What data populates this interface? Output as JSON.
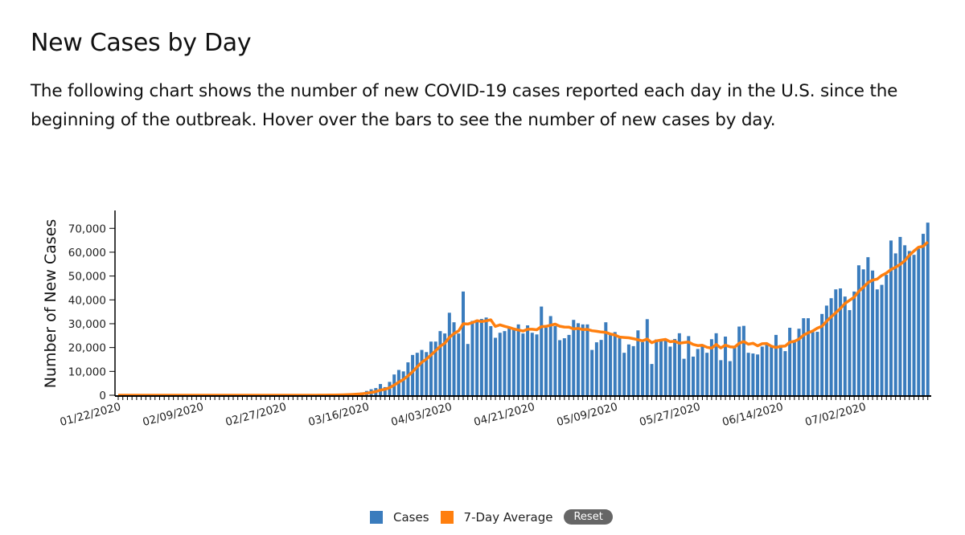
{
  "header": {
    "title": "New Cases by Day",
    "description": "The following chart shows the number of new COVID-19 cases reported each day in the U.S. since the beginning of the outbreak. Hover over the bars to see the number of new cases by day."
  },
  "legend": {
    "cases_label": "Cases",
    "avg_label": "7-Day Average",
    "reset_label": "Reset"
  },
  "colors": {
    "cases": "#3a7cbd",
    "average": "#ff7f0e",
    "reset_bg": "#666666"
  },
  "chart_data": {
    "type": "bar",
    "title": "",
    "xlabel": "",
    "ylabel": "Number of New Cases",
    "start_date": "01/22/2020",
    "x_tick_labels": [
      "01/22/2020",
      "02/09/2020",
      "02/27/2020",
      "03/16/2020",
      "04/03/2020",
      "04/21/2020",
      "05/09/2020",
      "05/27/2020",
      "06/14/2020",
      "07/02/2020"
    ],
    "y_tick_labels": [
      "0",
      "10,000",
      "20,000",
      "30,000",
      "40,000",
      "50,000",
      "60,000",
      "70,000"
    ],
    "y_ticks": [
      0,
      10000,
      20000,
      30000,
      40000,
      50000,
      60000,
      70000
    ],
    "ylim": [
      0,
      77500
    ],
    "grid": false,
    "legend_position": "bottom",
    "series": [
      {
        "name": "Cases",
        "type": "bar",
        "values": [
          0,
          0,
          1,
          0,
          3,
          0,
          1,
          0,
          0,
          1,
          1,
          0,
          2,
          0,
          0,
          0,
          0,
          1,
          0,
          0,
          0,
          0,
          0,
          0,
          0,
          0,
          0,
          0,
          0,
          0,
          0,
          2,
          0,
          3,
          3,
          2,
          4,
          5,
          8,
          10,
          14,
          20,
          25,
          30,
          60,
          100,
          150,
          250,
          300,
          400,
          500,
          700,
          900,
          1200,
          1800,
          2500,
          3000,
          4700,
          3400,
          5600,
          8700,
          10600,
          10000,
          13800,
          16900,
          17800,
          19000,
          18100,
          22500,
          22500,
          26900,
          25900,
          34600,
          30600,
          25900,
          43500,
          21500,
          31200,
          31600,
          32000,
          32600,
          29000,
          24100,
          26200,
          26900,
          28100,
          27600,
          29700,
          25900,
          29300,
          26200,
          25500,
          37200,
          28400,
          33200,
          29000,
          23100,
          23900,
          25300,
          31600,
          30200,
          29700,
          29700,
          19000,
          22200,
          23200,
          30600,
          25400,
          26500,
          23900,
          17800,
          21300,
          20600,
          27200,
          22300,
          31900,
          13100,
          23400,
          23200,
          22800,
          20400,
          23600,
          26000,
          15300,
          24800,
          16200,
          19400,
          21300,
          17800,
          23500,
          26000,
          14700,
          24600,
          14300,
          20400,
          28800,
          29100,
          17800,
          17500,
          17100,
          20400,
          21300,
          20700,
          25300,
          21100,
          18500,
          28300,
          23000,
          27900,
          32300,
          32300,
          26500,
          26600,
          34100,
          37600,
          40700,
          44400,
          44800,
          41400,
          35700,
          43500,
          54500,
          52800,
          57900,
          52300,
          44400,
          46300,
          50500,
          64900,
          59500,
          66400,
          62900,
          60500,
          58900,
          61500,
          67700,
          72400
        ]
      },
      {
        "name": "7-Day Average",
        "type": "line"
      }
    ]
  }
}
